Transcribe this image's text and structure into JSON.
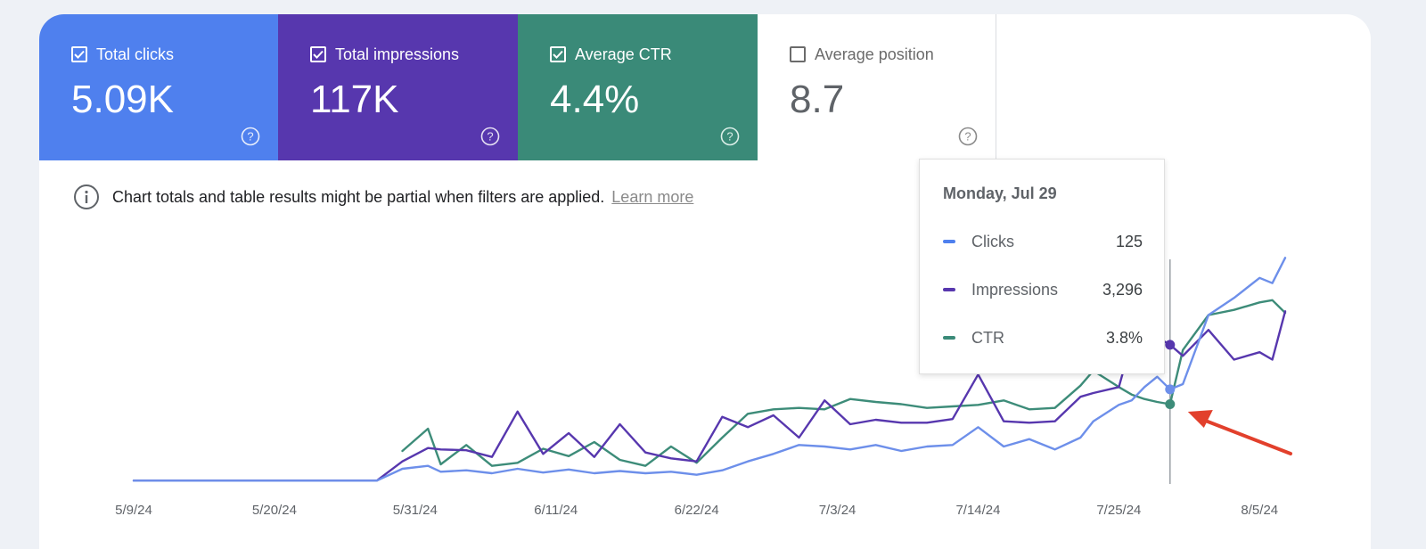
{
  "cards": [
    {
      "label": "Total clicks",
      "value": "5.09K",
      "checked": true
    },
    {
      "label": "Total impressions",
      "value": "117K",
      "checked": true
    },
    {
      "label": "Average CTR",
      "value": "4.4%",
      "checked": true
    },
    {
      "label": "Average position",
      "value": "8.7",
      "checked": false
    }
  ],
  "notice": {
    "text": "Chart totals and table results might be partial when filters are applied.",
    "link": "Learn more"
  },
  "tooltip": {
    "date": "Monday, Jul 29",
    "rows": [
      {
        "name": "Clicks",
        "value": "125",
        "color": "#4f80ee"
      },
      {
        "name": "Impressions",
        "value": "3,296",
        "color": "#5737ae"
      },
      {
        "name": "CTR",
        "value": "3.8%",
        "color": "#3a8a78"
      }
    ]
  },
  "colors": {
    "clicks": "#6d8fea",
    "impressions": "#5737ae",
    "ctr": "#3d8c79",
    "arrow": "#e2402c"
  },
  "chart_data": {
    "type": "line",
    "x_tick_labels": [
      "5/9/24",
      "5/20/24",
      "5/31/24",
      "6/11/24",
      "6/22/24",
      "7/3/24",
      "7/14/24",
      "7/25/24",
      "8/5/24"
    ],
    "x_range": [
      "5/9/24",
      "8/7/24"
    ],
    "highlight": "7/29/24",
    "series": [
      {
        "name": "Clicks",
        "key": "clicks",
        "points": [
          [
            "5/9/24",
            2
          ],
          [
            "5/13/24",
            2
          ],
          [
            "5/17/24",
            2
          ],
          [
            "5/21/24",
            2
          ],
          [
            "5/25/24",
            2
          ],
          [
            "5/28/24",
            2
          ],
          [
            "5/30/24",
            18
          ],
          [
            "6/1/24",
            22
          ],
          [
            "6/2/24",
            14
          ],
          [
            "6/4/24",
            16
          ],
          [
            "6/6/24",
            12
          ],
          [
            "6/8/24",
            18
          ],
          [
            "6/10/24",
            13
          ],
          [
            "6/12/24",
            17
          ],
          [
            "6/14/24",
            12
          ],
          [
            "6/16/24",
            15
          ],
          [
            "6/18/24",
            12
          ],
          [
            "6/20/24",
            14
          ],
          [
            "6/22/24",
            10
          ],
          [
            "6/24/24",
            16
          ],
          [
            "6/26/24",
            28
          ],
          [
            "6/28/24",
            38
          ],
          [
            "6/30/24",
            50
          ],
          [
            "7/2/24",
            48
          ],
          [
            "7/4/24",
            44
          ],
          [
            "7/6/24",
            50
          ],
          [
            "7/8/24",
            42
          ],
          [
            "7/10/24",
            48
          ],
          [
            "7/12/24",
            50
          ],
          [
            "7/14/24",
            74
          ],
          [
            "7/16/24",
            48
          ],
          [
            "7/18/24",
            58
          ],
          [
            "7/20/24",
            44
          ],
          [
            "7/22/24",
            60
          ],
          [
            "7/23/24",
            82
          ],
          [
            "7/25/24",
            104
          ],
          [
            "7/26/24",
            110
          ],
          [
            "7/27/24",
            128
          ],
          [
            "7/28/24",
            142
          ],
          [
            "7/29/24",
            125
          ],
          [
            "7/30/24",
            132
          ],
          [
            "8/1/24",
            225
          ],
          [
            "8/3/24",
            248
          ],
          [
            "8/5/24",
            275
          ],
          [
            "8/6/24",
            268
          ],
          [
            "8/7/24",
            302
          ]
        ]
      },
      {
        "name": "Impressions",
        "key": "impressions",
        "points": [
          [
            "5/9/24",
            2
          ],
          [
            "5/13/24",
            2
          ],
          [
            "5/17/24",
            2
          ],
          [
            "5/21/24",
            2
          ],
          [
            "5/25/24",
            2
          ],
          [
            "5/28/24",
            2
          ],
          [
            "5/30/24",
            28
          ],
          [
            "6/1/24",
            46
          ],
          [
            "6/2/24",
            44
          ],
          [
            "6/4/24",
            43
          ],
          [
            "6/6/24",
            34
          ],
          [
            "6/8/24",
            95
          ],
          [
            "6/10/24",
            38
          ],
          [
            "6/12/24",
            66
          ],
          [
            "6/14/24",
            34
          ],
          [
            "6/16/24",
            78
          ],
          [
            "6/18/24",
            40
          ],
          [
            "6/20/24",
            32
          ],
          [
            "6/22/24",
            28
          ],
          [
            "6/24/24",
            88
          ],
          [
            "6/26/24",
            74
          ],
          [
            "6/28/24",
            90
          ],
          [
            "6/30/24",
            60
          ],
          [
            "7/2/24",
            110
          ],
          [
            "7/4/24",
            78
          ],
          [
            "7/6/24",
            84
          ],
          [
            "7/8/24",
            80
          ],
          [
            "7/10/24",
            80
          ],
          [
            "7/12/24",
            85
          ],
          [
            "7/14/24",
            145
          ],
          [
            "7/16/24",
            82
          ],
          [
            "7/18/24",
            80
          ],
          [
            "7/20/24",
            82
          ],
          [
            "7/22/24",
            115
          ],
          [
            "7/23/24",
            120
          ],
          [
            "7/25/24",
            128
          ],
          [
            "7/26/24",
            190
          ],
          [
            "7/27/24",
            188
          ],
          [
            "7/28/24",
            195
          ],
          [
            "7/29/24",
            185
          ],
          [
            "7/30/24",
            170
          ],
          [
            "8/1/24",
            205
          ],
          [
            "8/3/24",
            165
          ],
          [
            "8/5/24",
            175
          ],
          [
            "8/6/24",
            165
          ],
          [
            "8/7/24",
            230
          ]
        ]
      },
      {
        "name": "CTR",
        "key": "ctr",
        "points": [
          [
            "5/30/24",
            42
          ],
          [
            "6/1/24",
            72
          ],
          [
            "6/2/24",
            24
          ],
          [
            "6/4/24",
            50
          ],
          [
            "6/6/24",
            22
          ],
          [
            "6/8/24",
            26
          ],
          [
            "6/10/24",
            45
          ],
          [
            "6/12/24",
            35
          ],
          [
            "6/14/24",
            54
          ],
          [
            "6/16/24",
            30
          ],
          [
            "6/18/24",
            22
          ],
          [
            "6/20/24",
            48
          ],
          [
            "6/22/24",
            26
          ],
          [
            "6/24/24",
            60
          ],
          [
            "6/26/24",
            92
          ],
          [
            "6/28/24",
            98
          ],
          [
            "6/30/24",
            100
          ],
          [
            "7/2/24",
            98
          ],
          [
            "7/4/24",
            112
          ],
          [
            "7/6/24",
            108
          ],
          [
            "7/8/24",
            105
          ],
          [
            "7/10/24",
            100
          ],
          [
            "7/12/24",
            102
          ],
          [
            "7/14/24",
            104
          ],
          [
            "7/16/24",
            110
          ],
          [
            "7/18/24",
            98
          ],
          [
            "7/20/24",
            100
          ],
          [
            "7/22/24",
            130
          ],
          [
            "7/23/24",
            150
          ],
          [
            "7/25/24",
            128
          ],
          [
            "7/26/24",
            118
          ],
          [
            "7/27/24",
            112
          ],
          [
            "7/28/24",
            108
          ],
          [
            "7/29/24",
            105
          ],
          [
            "7/30/24",
            178
          ],
          [
            "8/1/24",
            225
          ],
          [
            "8/3/24",
            232
          ],
          [
            "8/5/24",
            242
          ],
          [
            "8/6/24",
            245
          ],
          [
            "8/7/24",
            228
          ]
        ]
      }
    ]
  }
}
